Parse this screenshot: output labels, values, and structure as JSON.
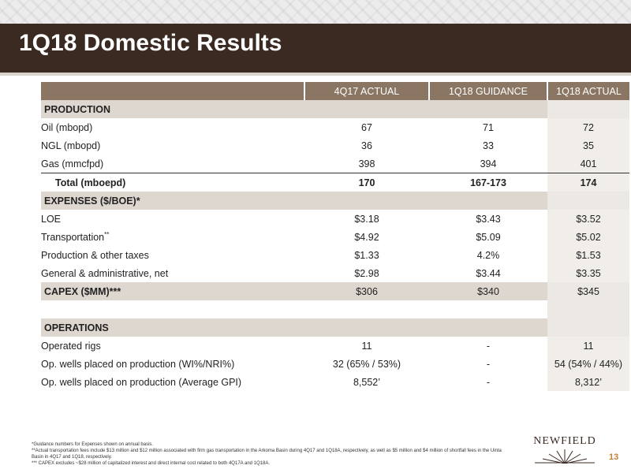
{
  "slide": {
    "title": "1Q18 Domestic Results",
    "page_number": "13",
    "logo_text": "NEWFIELD"
  },
  "table": {
    "headers": [
      "",
      "4Q17 ACTUAL",
      "1Q18 GUIDANCE",
      "1Q18 ACTUAL"
    ],
    "sections": {
      "production": "PRODUCTION",
      "expenses": "EXPENSES ($/BOE)*",
      "operations": "OPERATIONS"
    },
    "rows": {
      "oil": {
        "label": "Oil (mbopd)",
        "q4": "67",
        "guid": "71",
        "act": "72"
      },
      "ngl": {
        "label": "NGL (mbopd)",
        "q4": "36",
        "guid": "33",
        "act": "35"
      },
      "gas": {
        "label": "Gas (mmcfpd)",
        "q4": "398",
        "guid": "394",
        "act": "401"
      },
      "total": {
        "label": "Total (mboepd)",
        "q4": "170",
        "guid": "167-173",
        "act": "174"
      },
      "loe": {
        "label": "LOE",
        "q4": "$3.18",
        "guid": "$3.43",
        "act": "$3.52"
      },
      "transport": {
        "label": "Transportation",
        "sup": "**",
        "q4": "$4.92",
        "guid": "$5.09",
        "act": "$5.02"
      },
      "prodtax": {
        "label": "Production & other taxes",
        "q4": "$1.33",
        "guid": "4.2%",
        "act": "$1.53"
      },
      "ga": {
        "label": "General & administrative, net",
        "q4": "$2.98",
        "guid": "$3.44",
        "act": "$3.35"
      },
      "capex": {
        "label": "CAPEX ($MM)***",
        "q4": "$306",
        "guid": "$340",
        "act": "$345"
      },
      "rigs": {
        "label": "Operated rigs",
        "q4": "11",
        "guid": "-",
        "act": "11"
      },
      "wells_wi": {
        "label": "Op. wells placed on production (WI%/NRI%)",
        "q4": "32 (65% / 53%)",
        "guid": "-",
        "act": "54 (54% / 44%)"
      },
      "wells_gpi": {
        "label": "Op. wells placed on production (Average GPI)",
        "q4": "8,552’",
        "guid": "-",
        "act": "8,312’"
      }
    }
  },
  "footnotes": [
    "*Guidance numbers for Expenses shown on annual basis.",
    "**Actual transportation fees include $13 million and $12 million associated with firm gas transportation in the Arkoma Basin during 4Q17 and 1Q18A, respectively, as well as $5 million and $4 million of shortfall fees in the Uinta Basin in 4Q17 and 1Q18, respectively.",
    "*** CAPEX excludes ~$28 million of capitalized interest and direct internal cost related to both 4Q17A and 1Q18A."
  ],
  "colors": {
    "title_bar": "#3b2a21",
    "header_fill": "#8b7663",
    "section_fill": "#ddd7d0",
    "actual_column_fill": "#f1eeea",
    "page_number": "#c0803a"
  }
}
